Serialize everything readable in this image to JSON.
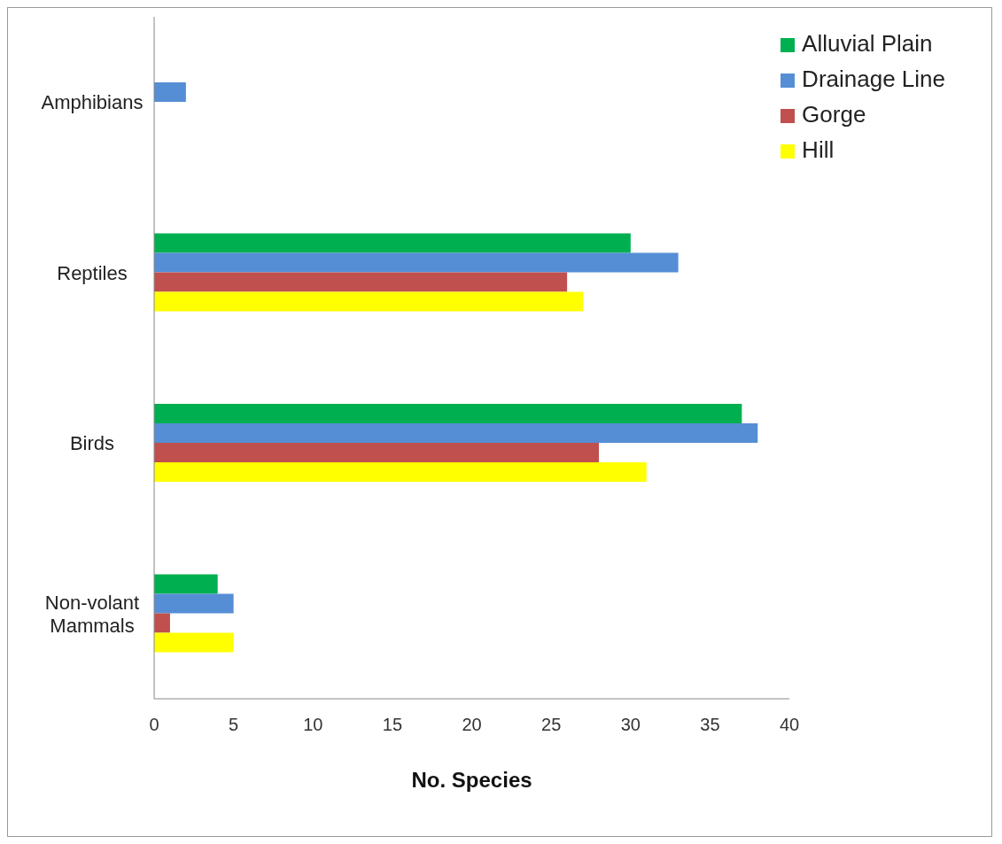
{
  "chart_data": {
    "type": "bar",
    "orientation": "horizontal",
    "xlabel": "No. Species",
    "categories": [
      "Amphibians",
      "Reptiles",
      "Birds",
      "Non-volant Mammals"
    ],
    "series": [
      {
        "name": "Alluvial Plain",
        "color": "#00b050",
        "values": [
          0,
          30,
          37,
          4
        ]
      },
      {
        "name": "Drainage Line",
        "color": "#558ed5",
        "values": [
          2,
          33,
          38,
          5
        ]
      },
      {
        "name": "Gorge",
        "color": "#c0504d",
        "values": [
          0,
          26,
          28,
          1
        ]
      },
      {
        "name": "Hill",
        "color": "#ffff00",
        "values": [
          0,
          27,
          31,
          5
        ]
      }
    ],
    "xlim": [
      0,
      40
    ],
    "xticks": [
      0,
      5,
      10,
      15,
      20,
      25,
      30,
      35,
      40
    ],
    "grid": false,
    "legend": "top right"
  }
}
